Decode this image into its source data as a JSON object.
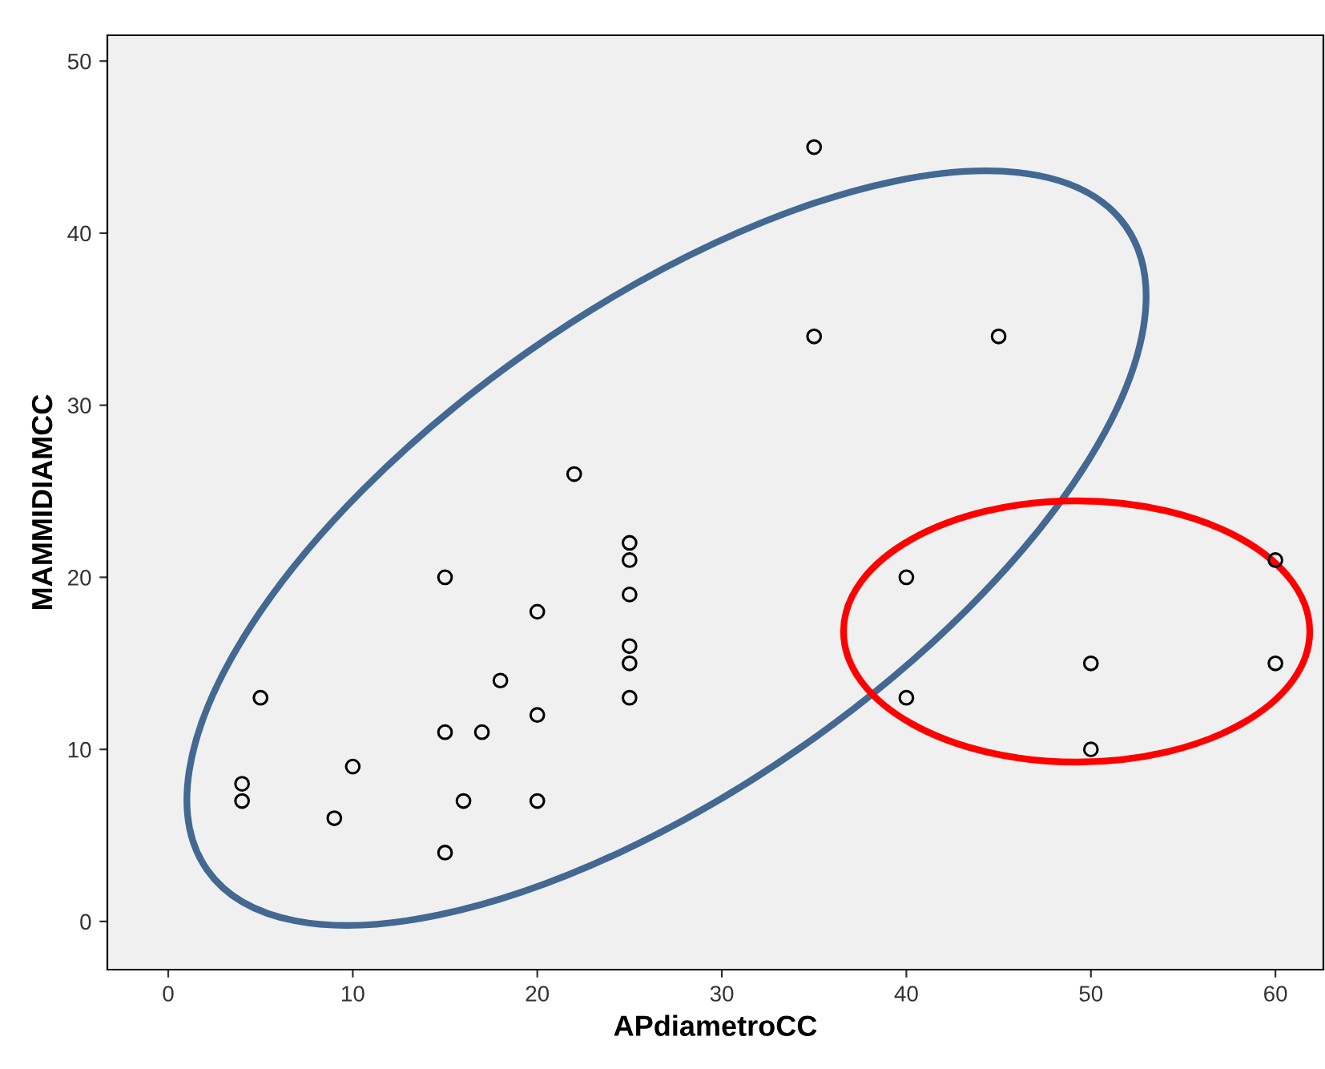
{
  "chart_data": {
    "type": "scatter",
    "xlabel": "APdiametroCC",
    "ylabel": "MAMMIDIAMCC",
    "x": [
      35,
      35,
      45,
      22,
      25,
      25,
      15,
      40,
      60,
      25,
      20,
      25,
      25,
      50,
      60,
      18,
      5,
      25,
      40,
      20,
      15,
      17,
      50,
      10,
      4,
      4,
      16,
      20,
      9,
      15
    ],
    "series": [
      {
        "color": "#000000",
        "values": [
          45,
          34,
          34,
          26,
          22,
          21,
          20,
          20,
          21,
          19,
          18,
          16,
          15,
          15,
          15,
          14,
          13,
          13,
          13,
          12,
          11,
          11,
          10,
          9,
          8,
          7,
          7,
          7,
          6,
          4
        ]
      }
    ],
    "xlim": [
      -3.3,
      62.6
    ],
    "ylim": [
      -2.8,
      51.5
    ],
    "xticks": [
      0,
      10,
      20,
      30,
      40,
      50,
      60
    ],
    "yticks": [
      0,
      10,
      20,
      30,
      40,
      50
    ],
    "marker": "circle"
  }
}
